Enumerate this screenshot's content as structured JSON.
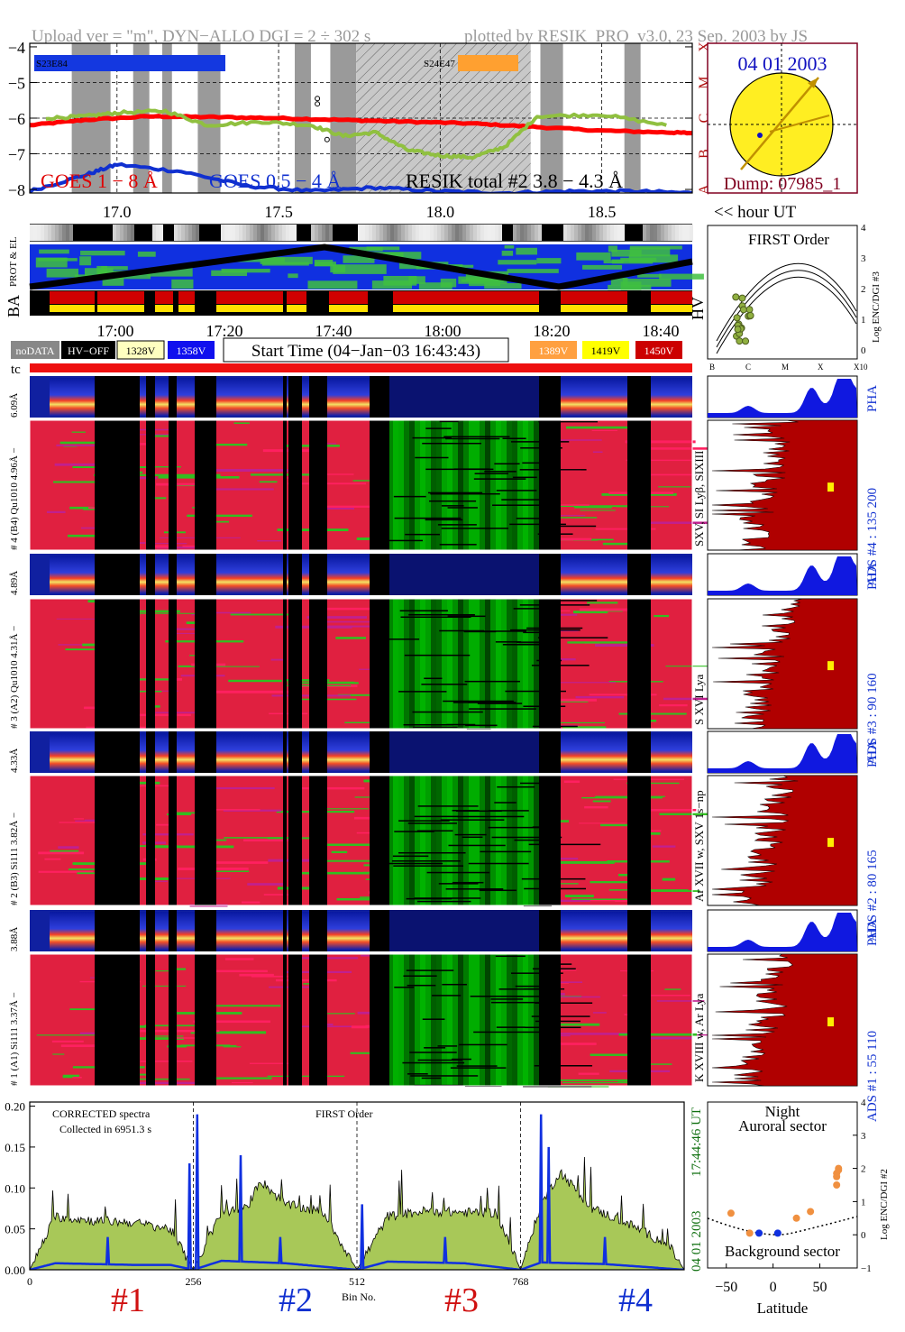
{
  "header": {
    "upload": "Upload ver = \"m\", DYN−ALLO DGI =   2 ÷ 302 s",
    "plotted": "plotted by RESIK_PRO_v3.0, 23 Sep. 2003 by JS"
  },
  "goes": {
    "y_ticks": [
      "−4",
      "−5",
      "−6",
      "−7",
      "−8"
    ],
    "class_labels": [
      "X",
      "M",
      "C",
      "B",
      "A"
    ],
    "legend_goes18": "GOES 1 − 8 Å",
    "legend_goes054": "GOES 0.5 − 4 Å",
    "legend_resik": "RESIK total #2  3.8 − 4.3 Å",
    "event1": "S23E84",
    "event2": "S24E47",
    "x_ticks": [
      "17.0",
      "17.5",
      "18.0",
      "18.5"
    ],
    "x_label": "<< hour UT",
    "colors": {
      "goes18": "#ff0000",
      "goes054": "#1030d0",
      "resik": "#90c040",
      "event1": "#1438e0",
      "event2": "#ffa030"
    },
    "gray_bands_hours": [
      [
        16.86,
        16.98
      ],
      [
        17.05,
        17.1
      ],
      [
        17.14,
        17.17
      ],
      [
        17.25,
        17.32
      ],
      [
        17.55,
        17.6
      ],
      [
        17.66,
        17.74
      ],
      [
        18.19,
        18.22
      ],
      [
        18.31,
        18.38
      ],
      [
        18.57,
        18.62
      ]
    ],
    "hatch_hours": [
      17.74,
      18.28
    ]
  },
  "sun": {
    "date": "04 01 2003",
    "dump": "Dump: 07985_1",
    "disk_color": "#ffee22"
  },
  "strips": {
    "prot_label": "PROT & EL",
    "ba": "BA",
    "hv": "HV",
    "times": [
      "17:00",
      "17:20",
      "17:40",
      "18:00",
      "18:20",
      "18:40"
    ]
  },
  "legend_bar": {
    "nodata": "noDATA",
    "hvoff": "HV−OFF",
    "v1": "1328V",
    "v2": "1358V",
    "start": "Start Time (04−Jan−03 16:43:43)",
    "v3": "1389V",
    "v4": "1419V",
    "v5": "1450V",
    "colors": {
      "v1": "#ffffc0",
      "v2": "#1010ee",
      "v3": "#ffa040",
      "v4": "#ffff00",
      "v5": "#cc0000"
    }
  },
  "tc": "tc",
  "first_order_top": {
    "title": "FIRST Order",
    "y_label": "Log ENC/DGI #3",
    "y_ticks": [
      "4",
      "3",
      "2",
      "1",
      "0"
    ],
    "x_ticks": [
      "B",
      "C",
      "M",
      "X",
      "X10"
    ]
  },
  "channels": [
    {
      "pha_label": "6.09Å",
      "label": "# 4 (B4) Qu1010 4.96Å −",
      "side": "SXV, SI Lyβ, SIXIII",
      "ads": "ADS #4 :   135 200"
    },
    {
      "pha_label": "4.89Å",
      "label": "# 3 (A2) Qu1010 4.31Å −",
      "side": "S XVI Lya",
      "ads": "ADS #3 :   90 160"
    },
    {
      "pha_label": "4.33Å",
      "label": "# 2 (B3) Si111 3.82Å −",
      "side": "Ar XVII w, SXV 1s−np",
      "ads": "ADS #2 :   80 165"
    },
    {
      "pha_label": "3.88Å",
      "label": "# 1 (A1) Si111 3.37Å −",
      "side": "K XVIII w, Ar Lya",
      "ads": "ADS #1 :   55 110"
    }
  ],
  "pha_text": "PHA",
  "spectrum": {
    "note1": "CORRECTED spectra",
    "note2": "Collected in  6951.3 s",
    "title": "FIRST Order",
    "y_ticks": [
      "0.20",
      "0.15",
      "0.10",
      "0.05",
      "0.00"
    ],
    "x_ticks": [
      "0",
      "256",
      "512",
      "768"
    ],
    "x_label": "Bin No.",
    "date_label": "04 01 2003",
    "time_label": "17:44:46 UT",
    "detectors": [
      "#1",
      "#2",
      "#3",
      "#4"
    ],
    "detector_colors": [
      "#d01010",
      "#1030d0",
      "#d01010",
      "#1030d0"
    ],
    "fill_color": "#a8c858"
  },
  "latitude": {
    "night": "Night",
    "auroral": "Auroral sector",
    "background": "Background sector",
    "y_label": "Log ENC/DGI #2",
    "y_ticks": [
      "4",
      "3",
      "2",
      "1",
      "0",
      "−1"
    ],
    "x_ticks": [
      "−50",
      "0",
      "50"
    ],
    "x_label": "Latitude"
  },
  "chart_data": [
    {
      "type": "line",
      "title": "",
      "xlabel": "<< hour UT",
      "ylabel": "",
      "xlim": [
        16.73,
        18.78
      ],
      "ylim": [
        -8.1,
        -3.9
      ],
      "series": [
        {
          "name": "GOES 1 − 8 Å",
          "x": [
            16.73,
            16.9,
            17.1,
            17.3,
            17.5,
            17.7,
            17.9,
            18.1,
            18.3,
            18.5,
            18.7,
            18.78
          ],
          "y": [
            -6.2,
            -6.05,
            -5.95,
            -5.97,
            -6.0,
            -6.05,
            -6.1,
            -6.15,
            -6.25,
            -6.35,
            -6.4,
            -6.42
          ]
        },
        {
          "name": "GOES 0.5 − 4 Å",
          "x": [
            16.73,
            16.9,
            17.0,
            17.2,
            17.4,
            17.6,
            17.8,
            18.0,
            18.2,
            18.4,
            18.6,
            18.78
          ],
          "y": [
            -8.05,
            -7.6,
            -7.3,
            -7.5,
            -7.9,
            -8.05,
            -7.95,
            -8.05,
            -8.1,
            -8.05,
            -8.05,
            -8.1
          ]
        },
        {
          "name": "RESIK total #2  3.8 − 4.3 Å",
          "x": [
            16.78,
            16.9,
            17.0,
            17.15,
            17.28,
            17.45,
            17.6,
            17.7,
            17.8,
            17.9,
            18.0,
            18.1,
            18.2,
            18.3,
            18.5,
            18.7
          ],
          "y": [
            -6.0,
            -5.95,
            -5.85,
            -5.8,
            -6.2,
            -6.1,
            -6.2,
            -6.5,
            -6.4,
            -6.9,
            -7.05,
            -7.1,
            -6.8,
            -5.95,
            -5.9,
            -6.2
          ]
        }
      ]
    },
    {
      "type": "area",
      "title": "FIRST Order",
      "xlabel": "Bin No.",
      "ylabel": "",
      "xlim": [
        0,
        1024
      ],
      "ylim": [
        0,
        0.205
      ],
      "series": [
        {
          "name": "corrected",
          "x": [
            0,
            40,
            100,
            160,
            220,
            256,
            300,
            340,
            360,
            400,
            460,
            512,
            560,
            620,
            680,
            730,
            768,
            800,
            830,
            880,
            940,
            1000,
            1024
          ],
          "y": [
            0.0,
            0.065,
            0.06,
            0.058,
            0.05,
            0.0,
            0.07,
            0.075,
            0.11,
            0.08,
            0.07,
            0.0,
            0.065,
            0.072,
            0.07,
            0.07,
            0.0,
            0.08,
            0.12,
            0.075,
            0.055,
            0.03,
            0.0
          ]
        },
        {
          "name": "background",
          "x": [
            0,
            40,
            100,
            160,
            220,
            256,
            300,
            400,
            512,
            560,
            680,
            768,
            800,
            900,
            1024
          ],
          "y": [
            0.0,
            0.008,
            0.007,
            0.006,
            0.006,
            0.0,
            0.011,
            0.008,
            0.0,
            0.01,
            0.008,
            0.0,
            0.009,
            0.007,
            0.0
          ]
        }
      ]
    },
    {
      "type": "scatter",
      "title": "",
      "xlabel": "Latitude",
      "ylabel": "Log ENC/DGI #2",
      "xlim": [
        -70,
        90
      ],
      "ylim": [
        -1,
        4
      ],
      "series": [
        {
          "name": "orange",
          "x": [
            -45,
            -25,
            25,
            40,
            68,
            68,
            70,
            70,
            68
          ],
          "y": [
            0.65,
            0.05,
            0.5,
            0.7,
            1.5,
            1.85,
            1.95,
            2.0,
            1.75
          ]
        },
        {
          "name": "blue",
          "x": [
            -15,
            5
          ],
          "y": [
            0.05,
            0.05
          ]
        }
      ]
    }
  ]
}
